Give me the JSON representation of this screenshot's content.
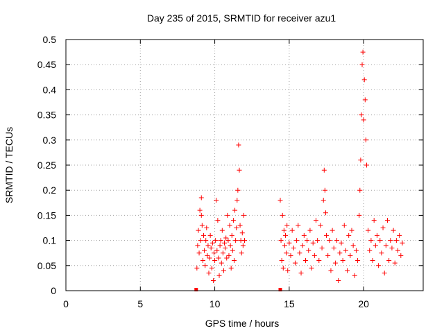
{
  "chart_data": {
    "type": "scatter",
    "title": "Day 235 of 2015, SRMTID for receiver azu1",
    "xlabel": "GPS time / hours",
    "ylabel": "SRMTID / TECUs",
    "xlim": [
      0,
      24
    ],
    "ylim": [
      0,
      0.5
    ],
    "xticks": [
      0,
      5,
      10,
      15,
      20
    ],
    "yticks": [
      0,
      0.05,
      0.1,
      0.15,
      0.2,
      0.25,
      0.3,
      0.35,
      0.4,
      0.45,
      0.5
    ],
    "grid": true,
    "marker": "+",
    "series": [
      {
        "name": "SRMTID",
        "color": "#ff0000",
        "points": [
          [
            8.8,
            0.045
          ],
          [
            8.85,
            0.09
          ],
          [
            8.9,
            0.12
          ],
          [
            8.95,
            0.075
          ],
          [
            9.0,
            0.16
          ],
          [
            9.05,
            0.1
          ],
          [
            9.1,
            0.185
          ],
          [
            9.1,
            0.15
          ],
          [
            9.15,
            0.13
          ],
          [
            9.2,
            0.06
          ],
          [
            9.25,
            0.11
          ],
          [
            9.3,
            0.08
          ],
          [
            9.35,
            0.05
          ],
          [
            9.4,
            0.1
          ],
          [
            9.45,
            0.125
          ],
          [
            9.5,
            0.07
          ],
          [
            9.55,
            0.09
          ],
          [
            9.6,
            0.035
          ],
          [
            9.65,
            0.065
          ],
          [
            9.7,
            0.11
          ],
          [
            9.75,
            0.085
          ],
          [
            9.8,
            0.045
          ],
          [
            9.85,
            0.095
          ],
          [
            9.9,
            0.02
          ],
          [
            9.95,
            0.075
          ],
          [
            10.0,
            0.06
          ],
          [
            10.05,
            0.1
          ],
          [
            10.1,
            0.18
          ],
          [
            10.15,
            0.08
          ],
          [
            10.2,
            0.14
          ],
          [
            10.25,
            0.065
          ],
          [
            10.3,
            0.03
          ],
          [
            10.35,
            0.09
          ],
          [
            10.4,
            0.1
          ],
          [
            10.45,
            0.055
          ],
          [
            10.5,
            0.12
          ],
          [
            10.55,
            0.075
          ],
          [
            10.6,
            0.04
          ],
          [
            10.65,
            0.095
          ],
          [
            10.7,
            0.085
          ],
          [
            10.75,
            0.105
          ],
          [
            10.8,
            0.065
          ],
          [
            10.85,
            0.15
          ],
          [
            10.9,
            0.1
          ],
          [
            10.95,
            0.07
          ],
          [
            11.0,
            0.13
          ],
          [
            11.05,
            0.09
          ],
          [
            11.1,
            0.045
          ],
          [
            11.15,
            0.11
          ],
          [
            11.2,
            0.08
          ],
          [
            11.25,
            0.14
          ],
          [
            11.3,
            0.06
          ],
          [
            11.35,
            0.16
          ],
          [
            11.4,
            0.1
          ],
          [
            11.45,
            0.125
          ],
          [
            11.5,
            0.18
          ],
          [
            11.55,
            0.2
          ],
          [
            11.6,
            0.29
          ],
          [
            11.65,
            0.24
          ],
          [
            11.7,
            0.13
          ],
          [
            11.75,
            0.1
          ],
          [
            11.8,
            0.075
          ],
          [
            11.85,
            0.115
          ],
          [
            11.9,
            0.09
          ],
          [
            11.95,
            0.15
          ],
          [
            12.0,
            0.1
          ],
          [
            14.4,
            0.18
          ],
          [
            14.45,
            0.1
          ],
          [
            14.5,
            0.06
          ],
          [
            14.55,
            0.15
          ],
          [
            14.6,
            0.045
          ],
          [
            14.65,
            0.12
          ],
          [
            14.7,
            0.09
          ],
          [
            14.75,
            0.11
          ],
          [
            14.8,
            0.075
          ],
          [
            14.85,
            0.13
          ],
          [
            14.9,
            0.04
          ],
          [
            15.0,
            0.095
          ],
          [
            15.1,
            0.07
          ],
          [
            15.2,
            0.12
          ],
          [
            15.3,
            0.085
          ],
          [
            15.4,
            0.055
          ],
          [
            15.5,
            0.1
          ],
          [
            15.6,
            0.13
          ],
          [
            15.7,
            0.075
          ],
          [
            15.8,
            0.035
          ],
          [
            15.9,
            0.09
          ],
          [
            16.0,
            0.11
          ],
          [
            16.1,
            0.06
          ],
          [
            16.2,
            0.1
          ],
          [
            16.3,
            0.08
          ],
          [
            16.4,
            0.12
          ],
          [
            16.5,
            0.045
          ],
          [
            16.6,
            0.095
          ],
          [
            16.7,
            0.07
          ],
          [
            16.8,
            0.14
          ],
          [
            16.9,
            0.1
          ],
          [
            17.0,
            0.06
          ],
          [
            17.1,
            0.13
          ],
          [
            17.2,
            0.085
          ],
          [
            17.3,
            0.18
          ],
          [
            17.35,
            0.24
          ],
          [
            17.4,
            0.2
          ],
          [
            17.45,
            0.155
          ],
          [
            17.5,
            0.11
          ],
          [
            17.6,
            0.07
          ],
          [
            17.7,
            0.1
          ],
          [
            17.8,
            0.04
          ],
          [
            17.9,
            0.12
          ],
          [
            18.0,
            0.085
          ],
          [
            18.1,
            0.055
          ],
          [
            18.2,
            0.1
          ],
          [
            18.3,
            0.02
          ],
          [
            18.4,
            0.075
          ],
          [
            18.5,
            0.095
          ],
          [
            18.6,
            0.06
          ],
          [
            18.7,
            0.13
          ],
          [
            18.8,
            0.08
          ],
          [
            18.9,
            0.04
          ],
          [
            19.0,
            0.11
          ],
          [
            19.1,
            0.07
          ],
          [
            19.2,
            0.12
          ],
          [
            19.3,
            0.09
          ],
          [
            19.4,
            0.03
          ],
          [
            19.5,
            0.08
          ],
          [
            19.6,
            0.06
          ],
          [
            19.7,
            0.15
          ],
          [
            19.75,
            0.2
          ],
          [
            19.8,
            0.26
          ],
          [
            19.85,
            0.35
          ],
          [
            19.9,
            0.45
          ],
          [
            19.95,
            0.475
          ],
          [
            20.0,
            0.34
          ],
          [
            20.05,
            0.42
          ],
          [
            20.1,
            0.38
          ],
          [
            20.15,
            0.3
          ],
          [
            20.2,
            0.25
          ],
          [
            20.3,
            0.12
          ],
          [
            20.4,
            0.08
          ],
          [
            20.5,
            0.1
          ],
          [
            20.6,
            0.06
          ],
          [
            20.7,
            0.14
          ],
          [
            20.8,
            0.09
          ],
          [
            20.9,
            0.11
          ],
          [
            21.0,
            0.05
          ],
          [
            21.1,
            0.1
          ],
          [
            21.2,
            0.075
          ],
          [
            21.3,
            0.125
          ],
          [
            21.4,
            0.035
          ],
          [
            21.5,
            0.09
          ],
          [
            21.6,
            0.14
          ],
          [
            21.7,
            0.06
          ],
          [
            21.8,
            0.1
          ],
          [
            21.9,
            0.085
          ],
          [
            22.0,
            0.12
          ],
          [
            22.1,
            0.055
          ],
          [
            22.2,
            0.1
          ],
          [
            22.3,
            0.08
          ],
          [
            22.4,
            0.11
          ],
          [
            22.5,
            0.07
          ],
          [
            22.6,
            0.095
          ]
        ]
      }
    ],
    "baseline_markers": [
      8.75,
      14.4
    ]
  }
}
